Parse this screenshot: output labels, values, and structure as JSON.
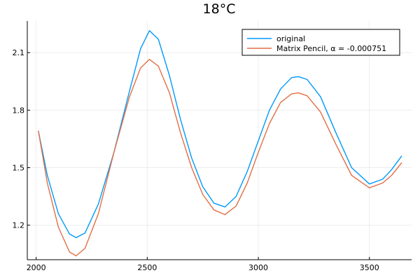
{
  "chart_data": {
    "type": "line",
    "title": "18°C",
    "xlabel": "",
    "ylabel": "",
    "xlim": [
      1960,
      3690
    ],
    "ylim": [
      1.02,
      2.265
    ],
    "xticks": [
      2000,
      2500,
      3000,
      3500
    ],
    "yticks": [
      1.2,
      1.5,
      1.8,
      2.1
    ],
    "xtick_labels": [
      "2000",
      "2500",
      "3000",
      "3500"
    ],
    "ytick_labels": [
      "1.2",
      "1.5",
      "1.8",
      "2.1"
    ],
    "grid": true,
    "legend": "top-right",
    "x": [
      2010,
      2050,
      2100,
      2150,
      2180,
      2220,
      2280,
      2350,
      2420,
      2470,
      2510,
      2550,
      2600,
      2650,
      2700,
      2750,
      2800,
      2850,
      2900,
      2950,
      3000,
      3050,
      3100,
      3150,
      3180,
      3220,
      3280,
      3350,
      3420,
      3500,
      3560,
      3600,
      3645
    ],
    "series": [
      {
        "name": "original",
        "color": "#009af9",
        "values": [
          1.69,
          1.46,
          1.26,
          1.154,
          1.135,
          1.16,
          1.31,
          1.58,
          1.9,
          2.12,
          2.215,
          2.17,
          1.98,
          1.75,
          1.55,
          1.4,
          1.315,
          1.295,
          1.35,
          1.48,
          1.64,
          1.8,
          1.91,
          1.97,
          1.975,
          1.96,
          1.87,
          1.68,
          1.5,
          1.415,
          1.44,
          1.49,
          1.56
        ]
      },
      {
        "name": "Matrix Pencil, α = -0.000751",
        "color": "#e26f46",
        "values": [
          1.69,
          1.42,
          1.19,
          1.06,
          1.04,
          1.08,
          1.26,
          1.58,
          1.87,
          2.02,
          2.065,
          2.03,
          1.89,
          1.68,
          1.5,
          1.36,
          1.28,
          1.255,
          1.3,
          1.42,
          1.58,
          1.73,
          1.84,
          1.885,
          1.89,
          1.875,
          1.79,
          1.62,
          1.46,
          1.395,
          1.42,
          1.46,
          1.525
        ]
      }
    ]
  }
}
